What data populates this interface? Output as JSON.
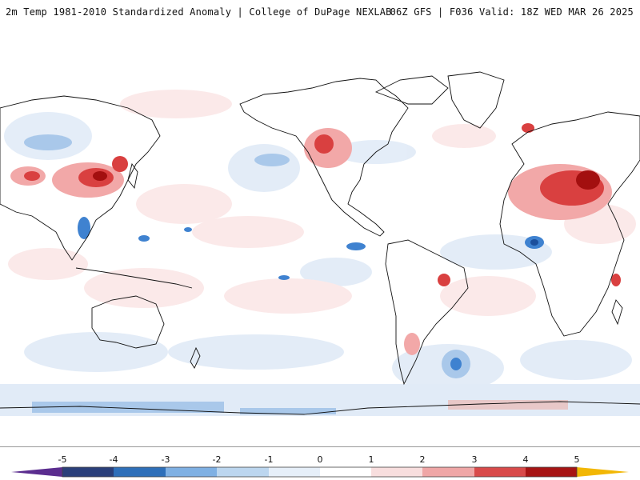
{
  "header": {
    "title": "2m Temp 1981-2010 Standardized Anomaly | College of DuPage NEXLAB",
    "run_info": "06Z GFS | F036 Valid: 18Z WED MAR 26 2025"
  },
  "colorbar": {
    "labels": [
      "-5",
      "-4",
      "-3",
      "-2",
      "-1",
      "0",
      "1",
      "2",
      "3",
      "4",
      "5"
    ],
    "colors": [
      "#5b2d8f",
      "#2a3f7a",
      "#2e6fb9",
      "#3f8fd6",
      "#9cc3e8",
      "#dbe8f5",
      "#ffffff",
      "#fbe0e0",
      "#f3b3b3",
      "#e07a7a",
      "#c92a2a",
      "#9e1010",
      "#6d0606",
      "#f2b705"
    ]
  },
  "map": {
    "projection": "global equirectangular, Pacific-centered",
    "anomaly_colors": {
      "warm_light": "#fbe1e1",
      "warm": "#f2a8a8",
      "warm_strong": "#d94040",
      "hot": "#a30f0f",
      "cool_light": "#e1ebf7",
      "cool": "#a9c8ea",
      "cold": "#3f82d0",
      "cold_strong": "#1c4f9c"
    },
    "coastline_color": "#111111"
  }
}
